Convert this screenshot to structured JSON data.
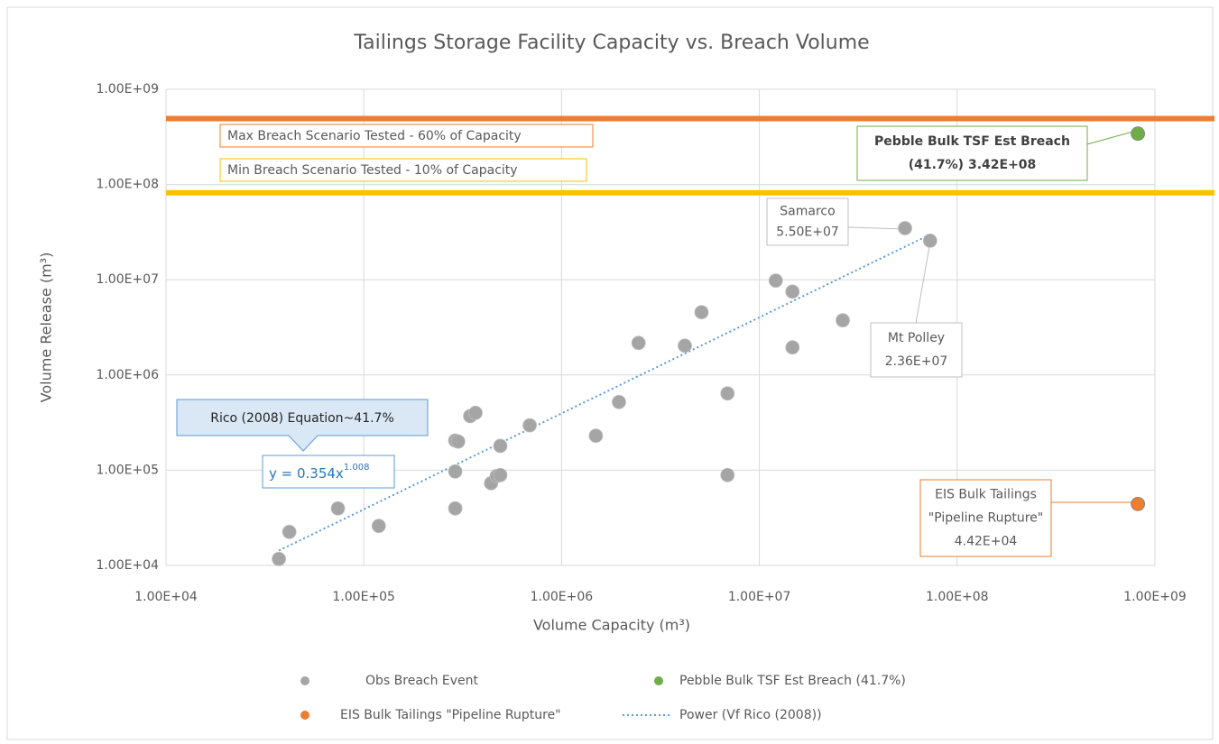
{
  "chart_data": {
    "type": "scatter",
    "title": "Tailings Storage Facility Capacity vs. Breach Volume",
    "x_label": "Volume Capacity (m³)",
    "y_label": "Volume Release (m³)",
    "xscale": "log",
    "yscale": "log",
    "grid": true,
    "legend": "bottom",
    "xlim": [
      10000,
      1000000000
    ],
    "ylim": [
      10000,
      1000000000
    ],
    "xticks": [
      {
        "value": 10000,
        "label": "1.00E+04"
      },
      {
        "value": 100000,
        "label": "1.00E+05"
      },
      {
        "value": 1000000,
        "label": "1.00E+06"
      },
      {
        "value": 10000000,
        "label": "1.00E+07"
      },
      {
        "value": 100000000,
        "label": "1.00E+08"
      },
      {
        "value": 1000000000,
        "label": "1.00E+09"
      }
    ],
    "yticks": [
      {
        "value": 10000,
        "label": "1.00E+04"
      },
      {
        "value": 100000,
        "label": "1.00E+05"
      },
      {
        "value": 1000000,
        "label": "1.00E+06"
      },
      {
        "value": 10000000,
        "label": "1.00E+07"
      },
      {
        "value": 100000000,
        "label": "1.00E+08"
      },
      {
        "value": 1000000000,
        "label": "1.00E+09"
      }
    ],
    "series": [
      {
        "name": "Obs Breach Event",
        "color": "#a5a5a5",
        "x": [
          37200,
          42000,
          74000,
          119000,
          290000,
          300000,
          290000,
          290000,
          345000,
          367000,
          440000,
          470000,
          490000,
          490000,
          690000,
          1490000,
          1950000,
          2450000,
          4200000,
          5100000,
          6900000,
          6900000,
          12100000,
          14700000,
          14700000,
          26400000,
          54500000,
          73000000
        ],
        "values": [
          11700,
          22500,
          39700,
          26000,
          205000,
          200000,
          97000,
          39700,
          370000,
          400000,
          73000,
          87000,
          89000,
          180000,
          296000,
          230000,
          520000,
          2170000,
          2030000,
          4560000,
          640000,
          89000,
          9800000,
          7500000,
          1950000,
          3750000,
          34800000,
          25700000
        ]
      },
      {
        "name": "Pebble Bulk TSF Est Breach (41.7%)",
        "color": "#70ad47",
        "x": [
          820000000
        ],
        "values": [
          342000000
        ]
      },
      {
        "name": "EIS Bulk Tailings \"Pipeline Rupture\"",
        "color": "#ed7d31",
        "x": [
          820000000
        ],
        "values": [
          44200
        ]
      }
    ],
    "trendline": {
      "name": "Power (Vf Rico (2008))",
      "color": "#5b9bd5",
      "coefficient": 0.354,
      "exponent": 1.008,
      "x_range": [
        37200,
        73000000
      ],
      "label": "Rico (2008) Equation~41.7%",
      "equation": {
        "text": "y = 0.354x",
        "superscript": "1.008"
      }
    },
    "hlines": [
      {
        "value": 492000000,
        "color": "#ed7d31",
        "label": "Max Breach Scenario Tested - 60% of Capacity"
      },
      {
        "value": 82000000,
        "color": "#ffc000",
        "label": "Min Breach Scenario Tested - 10% of Capacity"
      }
    ],
    "annotations": [
      {
        "lines": [
          "Samarco",
          "5.50E+07"
        ]
      },
      {
        "lines": [
          "Mt Polley",
          "2.36E+07"
        ]
      },
      {
        "lines": [
          "Pebble  Bulk TSF Est Breach",
          "(41.7%) 3.42E+08"
        ]
      },
      {
        "lines": [
          "EIS Bulk Tailings",
          "\"Pipeline Rupture\"",
          "4.42E+04"
        ]
      }
    ]
  }
}
